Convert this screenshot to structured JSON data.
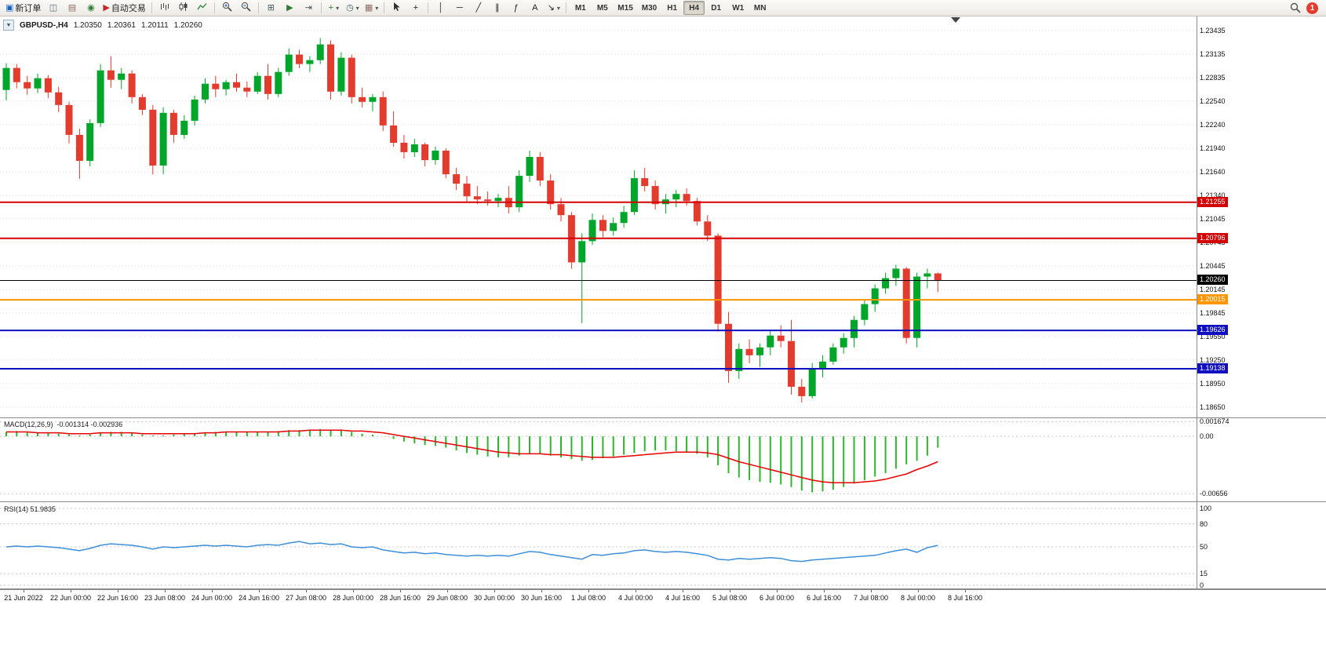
{
  "toolbar": {
    "timeframes": [
      "M1",
      "M5",
      "M15",
      "M30",
      "H1",
      "H4",
      "D1",
      "W1",
      "MN"
    ],
    "active_timeframe": "H4",
    "notification_count": "1",
    "items": [
      {
        "type": "button",
        "name": "new-order-button",
        "icon": "new-order-icon",
        "glyph": "▣",
        "color": "#1565c0",
        "label": "新订单"
      },
      {
        "type": "button",
        "name": "chart-window-button",
        "icon": "chart-window-icon",
        "glyph": "◫",
        "color": "#546e7a"
      },
      {
        "type": "button",
        "name": "profiles-button",
        "icon": "profiles-icon",
        "glyph": "▤",
        "color": "#8d6e63"
      },
      {
        "type": "button",
        "name": "alerts-button",
        "icon": "speaker-icon",
        "glyph": "◉",
        "color": "#2e7d32"
      },
      {
        "type": "button",
        "name": "autotrading-button",
        "icon": "autotrading-icon",
        "glyph": "▶",
        "color": "#c62828",
        "label": "自动交易"
      },
      {
        "type": "sep"
      },
      {
        "type": "button",
        "name": "bar-chart-button",
        "icon": "bar-chart-icon",
        "svg": "bars"
      },
      {
        "type": "button",
        "name": "candlestick-chart-button",
        "icon": "candlestick-icon",
        "svg": "candles"
      },
      {
        "type": "button",
        "name": "line-chart-button",
        "icon": "line-chart-icon",
        "svg": "line"
      },
      {
        "type": "sep"
      },
      {
        "type": "button",
        "name": "zoom-in-button",
        "icon": "zoom-in-icon",
        "svg": "zoomin"
      },
      {
        "type": "button",
        "name": "zoom-out-button",
        "icon": "zoom-out-icon",
        "svg": "zoomout"
      },
      {
        "type": "sep"
      },
      {
        "type": "button",
        "name": "tile-windows-button",
        "icon": "tile-windows-icon",
        "glyph": "⊞",
        "color": "#455a64"
      },
      {
        "type": "button",
        "name": "auto-scroll-button",
        "icon": "auto-scroll-icon",
        "glyph": "▶",
        "color": "#2e7d32"
      },
      {
        "type": "button",
        "name": "chart-shift-button",
        "icon": "chart-shift-icon",
        "glyph": "⇥",
        "color": "#455a64"
      },
      {
        "type": "sep"
      },
      {
        "type": "button",
        "name": "indicators-button",
        "icon": "indicators-icon",
        "glyph": "+",
        "color": "#2e7d32",
        "dd": true
      },
      {
        "type": "button",
        "name": "periods-button",
        "icon": "clock-icon",
        "glyph": "◷",
        "color": "#455a64",
        "dd": true
      },
      {
        "type": "button",
        "name": "templates-button",
        "icon": "template-icon",
        "glyph": "▦",
        "color": "#8d6e63",
        "dd": true
      },
      {
        "type": "sep"
      },
      {
        "type": "button",
        "name": "cursor-button",
        "icon": "cursor-icon",
        "svg": "cursor"
      },
      {
        "type": "button",
        "name": "crosshair-button",
        "icon": "crosshair-icon",
        "glyph": "+",
        "color": "#222"
      },
      {
        "type": "sep"
      },
      {
        "type": "button",
        "name": "vertical-line-button",
        "icon": "vertical-line-icon",
        "glyph": "│",
        "color": "#222"
      },
      {
        "type": "button",
        "name": "horizontal-line-button",
        "icon": "horizontal-line-icon",
        "glyph": "─",
        "color": "#222"
      },
      {
        "type": "button",
        "name": "trendline-button",
        "icon": "trendline-icon",
        "glyph": "╱",
        "color": "#222"
      },
      {
        "type": "button",
        "name": "channel-button",
        "icon": "channel-icon",
        "glyph": "∥",
        "color": "#222"
      },
      {
        "type": "button",
        "name": "fibonacci-button",
        "icon": "fibonacci-icon",
        "glyph": "ƒ",
        "color": "#222"
      },
      {
        "type": "button",
        "name": "text-button",
        "icon": "text-icon",
        "glyph": "A",
        "color": "#222"
      },
      {
        "type": "button",
        "name": "arrows-button",
        "icon": "arrow-tools-icon",
        "glyph": "↘",
        "color": "#222",
        "dd": true
      },
      {
        "type": "sep"
      }
    ]
  },
  "chart": {
    "symbol_line": {
      "collapse_glyph": "▼",
      "symbol": "GBPUSD-,H4",
      "open": "1.20350",
      "high": "1.20361",
      "low": "1.20111",
      "close": "1.20260"
    },
    "price_axis": [
      "1.23435",
      "1.23135",
      "1.22835",
      "1.22540",
      "1.22240",
      "1.21940",
      "1.21640",
      "1.21340",
      "1.21045",
      "1.20745",
      "1.20445",
      "1.20145",
      "1.19845",
      "1.19550",
      "1.19250",
      "1.18950",
      "1.18650"
    ],
    "time_axis": [
      "21 Jun 2022",
      "22 Jun 00:00",
      "22 Jun 16:00",
      "23 Jun 08:00",
      "24 Jun 00:00",
      "24 Jun 16:00",
      "27 Jun 08:00",
      "28 Jun 00:00",
      "28 Jun 16:00",
      "29 Jun 08:00",
      "30 Jun 00:00",
      "30 Jun 16:00",
      "1 Jul 08:00",
      "4 Jul 00:00",
      "4 Jul 16:00",
      "5 Jul 08:00",
      "6 Jul 00:00",
      "6 Jul 16:00",
      "7 Jul 08:00",
      "8 Jul 00:00",
      "8 Jul 16:00"
    ],
    "hlines": [
      {
        "price": 1.21255,
        "label": "1.21255",
        "color": "#d40000",
        "width": 2
      },
      {
        "price": 1.20796,
        "label": "1.20796",
        "color": "#d40000",
        "width": 2
      },
      {
        "price": 1.2026,
        "label": "1.20260",
        "color": "#000000",
        "width": 1
      },
      {
        "price": 1.20015,
        "label": "1.20015",
        "color": "#ff9500",
        "width": 2
      },
      {
        "price": 1.19626,
        "label": "1.19626",
        "color": "#0f0fbf",
        "width": 2
      },
      {
        "price": 1.19138,
        "label": "1.19138",
        "color": "#0f0fbf",
        "width": 2
      }
    ]
  },
  "macd": {
    "name": "MACD(12,26,9)",
    "main": "-0.001314",
    "signal": "-0.002936",
    "scale": [
      "0.001674",
      "0.00",
      "-0.00656"
    ]
  },
  "rsi": {
    "name": "RSI(14)",
    "value": "51.9835",
    "scale": [
      "100",
      "80",
      "50",
      "15",
      "0"
    ]
  },
  "chart_data": {
    "type": "candlestick",
    "symbol": "GBPUSD-",
    "timeframe": "H4",
    "ylim": [
      1.1865,
      1.23435
    ],
    "macd_ylim": [
      -0.0068,
      0.0018
    ],
    "rsi_ylim": [
      0,
      100
    ],
    "candles": [
      [
        1.2268,
        1.2302,
        1.2255,
        1.2296
      ],
      [
        1.2296,
        1.2301,
        1.227,
        1.2278
      ],
      [
        1.2278,
        1.2286,
        1.2262,
        1.227
      ],
      [
        1.227,
        1.2289,
        1.2264,
        1.2283
      ],
      [
        1.2283,
        1.2287,
        1.2258,
        1.2265
      ],
      [
        1.2265,
        1.2272,
        1.224,
        1.2249
      ],
      [
        1.2249,
        1.2253,
        1.22,
        1.2211
      ],
      [
        1.2211,
        1.2219,
        1.2155,
        1.2178
      ],
      [
        1.2178,
        1.2231,
        1.2171,
        1.2226
      ],
      [
        1.2226,
        1.2301,
        1.2221,
        1.2293
      ],
      [
        1.2293,
        1.2311,
        1.2271,
        1.2281
      ],
      [
        1.2281,
        1.2296,
        1.2269,
        1.2289
      ],
      [
        1.2289,
        1.2293,
        1.2251,
        1.2259
      ],
      [
        1.2259,
        1.2263,
        1.2236,
        1.2243
      ],
      [
        1.2243,
        1.2249,
        1.2161,
        1.2172
      ],
      [
        1.2172,
        1.2246,
        1.2161,
        1.2239
      ],
      [
        1.2239,
        1.2243,
        1.2201,
        1.2211
      ],
      [
        1.2211,
        1.2236,
        1.2206,
        1.2229
      ],
      [
        1.2229,
        1.2261,
        1.2223,
        1.2256
      ],
      [
        1.2256,
        1.2283,
        1.2251,
        1.2276
      ],
      [
        1.2276,
        1.2286,
        1.2259,
        1.2269
      ],
      [
        1.2269,
        1.2281,
        1.2261,
        1.2278
      ],
      [
        1.2278,
        1.2289,
        1.2266,
        1.2271
      ],
      [
        1.2271,
        1.2279,
        1.2259,
        1.2266
      ],
      [
        1.2266,
        1.2291,
        1.2263,
        1.2286
      ],
      [
        1.2286,
        1.2301,
        1.2256,
        1.2263
      ],
      [
        1.2263,
        1.2296,
        1.2259,
        1.2291
      ],
      [
        1.2291,
        1.2321,
        1.2286,
        1.2313
      ],
      [
        1.2313,
        1.2319,
        1.2296,
        1.2301
      ],
      [
        1.2301,
        1.2311,
        1.2291,
        1.2306
      ],
      [
        1.2306,
        1.2334,
        1.2301,
        1.2326
      ],
      [
        1.2326,
        1.2331,
        1.2256,
        1.2266
      ],
      [
        1.2266,
        1.2316,
        1.2261,
        1.2309
      ],
      [
        1.2309,
        1.2313,
        1.2251,
        1.2259
      ],
      [
        1.2259,
        1.2271,
        1.2246,
        1.2253
      ],
      [
        1.2253,
        1.2263,
        1.2241,
        1.2259
      ],
      [
        1.2259,
        1.2266,
        1.2216,
        1.2223
      ],
      [
        1.2223,
        1.2241,
        1.2196,
        1.2201
      ],
      [
        1.2201,
        1.2211,
        1.2181,
        1.2189
      ],
      [
        1.2189,
        1.2206,
        1.2183,
        1.2199
      ],
      [
        1.2199,
        1.2201,
        1.2171,
        1.2179
      ],
      [
        1.2179,
        1.2196,
        1.2173,
        1.2191
      ],
      [
        1.2191,
        1.2194,
        1.2156,
        1.2161
      ],
      [
        1.2161,
        1.2169,
        1.2141,
        1.2149
      ],
      [
        1.2149,
        1.2159,
        1.2126,
        1.2133
      ],
      [
        1.2133,
        1.2146,
        1.2123,
        1.2129
      ],
      [
        1.2129,
        1.2139,
        1.2121,
        1.2127
      ],
      [
        1.2127,
        1.2136,
        1.2119,
        1.2131
      ],
      [
        1.2131,
        1.2146,
        1.2111,
        1.2119
      ],
      [
        1.2119,
        1.2166,
        1.2113,
        1.2159
      ],
      [
        1.2159,
        1.2191,
        1.2151,
        1.2183
      ],
      [
        1.2183,
        1.2189,
        1.2146,
        1.2153
      ],
      [
        1.2153,
        1.2161,
        1.2116,
        1.2123
      ],
      [
        1.2123,
        1.2131,
        1.2101,
        1.2109
      ],
      [
        1.2109,
        1.2113,
        1.2041,
        1.2049
      ],
      [
        1.2049,
        1.2086,
        1.1972,
        1.2076
      ],
      [
        1.2076,
        1.2111,
        1.2071,
        1.2103
      ],
      [
        1.2103,
        1.2109,
        1.2081,
        1.2089
      ],
      [
        1.2089,
        1.2106,
        1.2083,
        1.2099
      ],
      [
        1.2099,
        1.2121,
        1.2093,
        1.2113
      ],
      [
        1.2113,
        1.2166,
        1.2109,
        1.2156
      ],
      [
        1.2156,
        1.2169,
        1.2139,
        1.2146
      ],
      [
        1.2146,
        1.2153,
        1.2116,
        1.2123
      ],
      [
        1.2123,
        1.2136,
        1.2111,
        1.2129
      ],
      [
        1.2129,
        1.2141,
        1.2119,
        1.2136
      ],
      [
        1.2136,
        1.2143,
        1.2121,
        1.2127
      ],
      [
        1.2127,
        1.2131,
        1.2096,
        1.2101
      ],
      [
        1.2101,
        1.2109,
        1.2076,
        1.2083
      ],
      [
        1.2083,
        1.2086,
        1.1961,
        1.1971
      ],
      [
        1.1971,
        1.1986,
        1.1896,
        1.1911
      ],
      [
        1.1911,
        1.1946,
        1.1901,
        1.1939
      ],
      [
        1.1939,
        1.1951,
        1.1921,
        1.1931
      ],
      [
        1.1931,
        1.1946,
        1.1916,
        1.1941
      ],
      [
        1.1941,
        1.1963,
        1.1931,
        1.1956
      ],
      [
        1.1956,
        1.1969,
        1.1941,
        1.1949
      ],
      [
        1.1949,
        1.1976,
        1.1881,
        1.1891
      ],
      [
        1.1891,
        1.1901,
        1.1871,
        1.1879
      ],
      [
        1.1879,
        1.1921,
        1.1876,
        1.1913
      ],
      [
        1.1913,
        1.1931,
        1.1903,
        1.1923
      ],
      [
        1.1923,
        1.1946,
        1.1919,
        1.1941
      ],
      [
        1.1941,
        1.1959,
        1.1933,
        1.1953
      ],
      [
        1.1953,
        1.1981,
        1.1941,
        1.1976
      ],
      [
        1.1976,
        1.2001,
        1.1969,
        1.1996
      ],
      [
        1.1996,
        1.2021,
        1.1986,
        1.2016
      ],
      [
        1.2016,
        1.2036,
        1.2009,
        1.2029
      ],
      [
        1.2029,
        1.2046,
        1.2019,
        1.2041
      ],
      [
        1.2041,
        1.2043,
        1.1946,
        1.1953
      ],
      [
        1.1953,
        1.2036,
        1.1941,
        1.2031
      ],
      [
        1.2031,
        1.2041,
        1.2016,
        1.2035
      ],
      [
        1.2035,
        1.20361,
        1.20111,
        1.2026
      ]
    ],
    "macd_histogram": [
      0.0005,
      0.0006,
      0.0005,
      0.0004,
      0.0004,
      0.0003,
      0.0002,
      0.0001,
      0.0002,
      0.0004,
      0.0005,
      0.0005,
      0.0004,
      0.0002,
      0.0001,
      0.0001,
      0.0002,
      0.0003,
      0.0003,
      0.0004,
      0.0005,
      0.0005,
      0.0005,
      0.0005,
      0.0005,
      0.0005,
      0.0006,
      0.0007,
      0.0007,
      0.0007,
      0.0008,
      0.0007,
      0.0007,
      0.0005,
      0.0003,
      0.0002,
      0.0,
      -0.0003,
      -0.0006,
      -0.0008,
      -0.001,
      -0.0011,
      -0.0013,
      -0.0016,
      -0.0019,
      -0.0021,
      -0.0023,
      -0.0024,
      -0.0024,
      -0.0022,
      -0.002,
      -0.002,
      -0.0022,
      -0.0024,
      -0.0026,
      -0.0028,
      -0.0027,
      -0.0025,
      -0.0023,
      -0.0021,
      -0.0019,
      -0.0017,
      -0.0016,
      -0.0016,
      -0.0017,
      -0.0018,
      -0.002,
      -0.0024,
      -0.0033,
      -0.0042,
      -0.0047,
      -0.005,
      -0.0052,
      -0.0053,
      -0.0055,
      -0.0058,
      -0.0062,
      -0.0064,
      -0.0063,
      -0.0061,
      -0.0058,
      -0.0054,
      -0.005,
      -0.0046,
      -0.0042,
      -0.0037,
      -0.0032,
      -0.0028,
      -0.0022,
      -0.0013
    ],
    "macd_signal": [
      0.0005,
      0.0005,
      0.0005,
      0.0004,
      0.0004,
      0.0004,
      0.0003,
      0.0003,
      0.0003,
      0.0004,
      0.0004,
      0.0004,
      0.0004,
      0.0003,
      0.0003,
      0.0003,
      0.0003,
      0.0003,
      0.0003,
      0.0004,
      0.0004,
      0.0005,
      0.0005,
      0.0005,
      0.0005,
      0.0005,
      0.0005,
      0.0006,
      0.0006,
      0.0007,
      0.0007,
      0.0007,
      0.0007,
      0.0006,
      0.0006,
      0.0005,
      0.0004,
      0.0002,
      0.0,
      -0.0002,
      -0.0004,
      -0.0006,
      -0.0008,
      -0.001,
      -0.0012,
      -0.0014,
      -0.0016,
      -0.0018,
      -0.0019,
      -0.002,
      -0.002,
      -0.002,
      -0.0021,
      -0.0021,
      -0.0022,
      -0.0023,
      -0.0024,
      -0.0024,
      -0.0024,
      -0.0023,
      -0.0022,
      -0.0021,
      -0.002,
      -0.0019,
      -0.0018,
      -0.0018,
      -0.0018,
      -0.0019,
      -0.0021,
      -0.0025,
      -0.0029,
      -0.0032,
      -0.0035,
      -0.0038,
      -0.0041,
      -0.0044,
      -0.0047,
      -0.005,
      -0.0052,
      -0.0053,
      -0.0053,
      -0.0053,
      -0.0052,
      -0.0051,
      -0.0049,
      -0.0046,
      -0.0043,
      -0.0038,
      -0.0034,
      -0.0029
    ],
    "rsi_values": [
      50,
      51,
      50,
      51,
      50,
      49,
      47,
      45,
      48,
      52,
      54,
      53,
      52,
      50,
      47,
      50,
      49,
      50,
      51,
      52,
      51,
      52,
      51,
      50,
      52,
      53,
      52,
      55,
      57,
      54,
      55,
      53,
      54,
      50,
      49,
      50,
      46,
      44,
      42,
      43,
      41,
      42,
      40,
      39,
      38,
      39,
      38,
      39,
      38,
      41,
      44,
      43,
      40,
      38,
      36,
      34,
      40,
      39,
      41,
      42,
      45,
      46,
      44,
      43,
      44,
      43,
      41,
      39,
      34,
      33,
      35,
      34,
      35,
      36,
      35,
      32,
      31,
      33,
      34,
      35,
      36,
      37,
      38,
      39,
      42,
      45,
      47,
      43,
      49,
      51.98
    ]
  }
}
